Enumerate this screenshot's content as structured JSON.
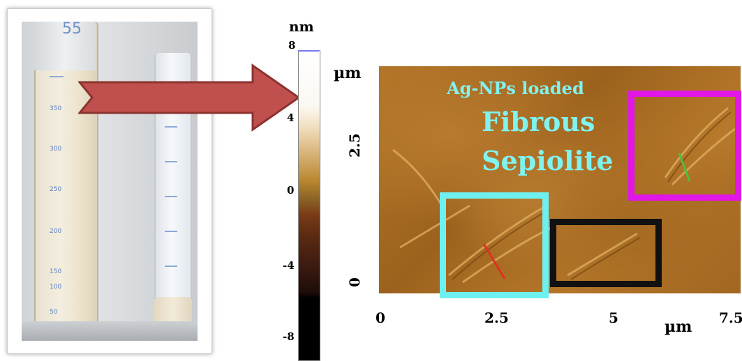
{
  "colorbar": {
    "unit": "nm",
    "ticks": [
      "8",
      "4",
      "0",
      "-4",
      "-8"
    ]
  },
  "afm_image": {
    "label_line1": "Ag-NPs loaded",
    "label_line2": "Fibrous",
    "label_line3": "Sepiolite",
    "y_axis_unit": "µm",
    "y_ticks": [
      "2.5",
      "0"
    ],
    "x_axis_unit": "µm",
    "x_ticks": [
      "0",
      "2.5",
      "5",
      "7.5"
    ],
    "highlight_colors": {
      "magenta": "#e017e6",
      "cyan": "#6ef0f0",
      "black": "#111111"
    }
  },
  "photo": {
    "cylinder_left_mark": "55",
    "scale_labels": [
      "350",
      "300",
      "250",
      "200",
      "150",
      "100",
      "50"
    ]
  },
  "arrow": {
    "color": "#c0504d"
  }
}
